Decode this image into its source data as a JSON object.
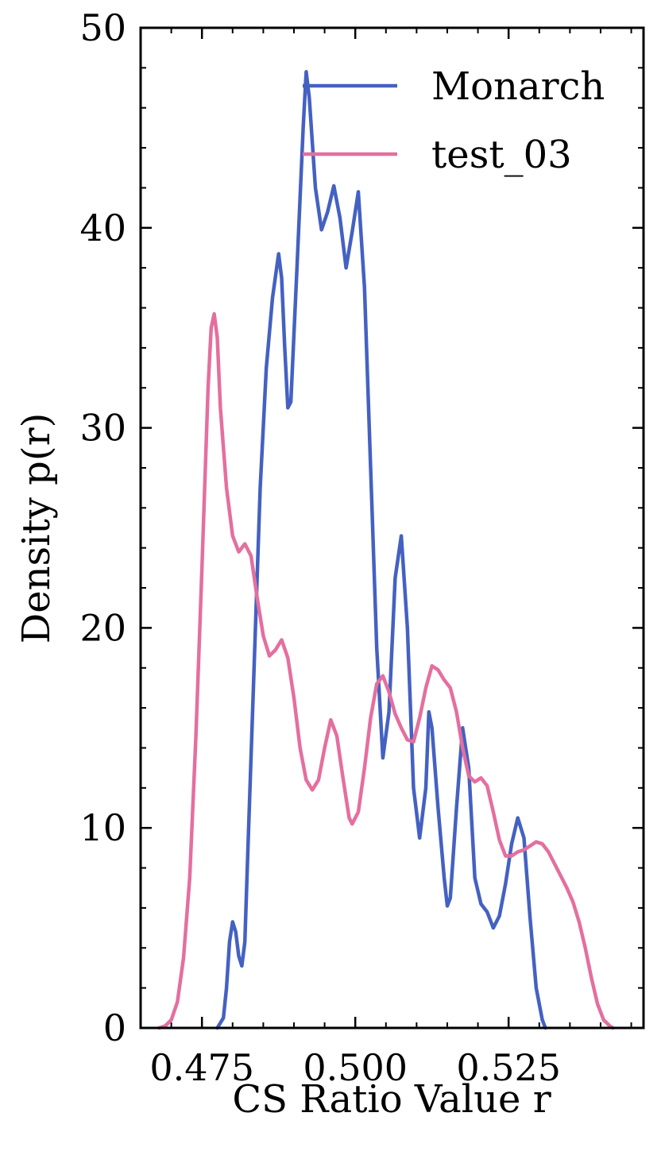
{
  "chart_data": {
    "type": "line",
    "xlabel": "CS Ratio Value r",
    "ylabel": "Density p(r)",
    "xlim": [
      0.465,
      0.547
    ],
    "ylim": [
      0,
      50
    ],
    "x_ticks": [
      0.475,
      0.5,
      0.525
    ],
    "x_tick_labels": [
      "0.475",
      "0.500",
      "0.525"
    ],
    "y_ticks": [
      0,
      10,
      20,
      30,
      40,
      50
    ],
    "y_tick_labels": [
      "0",
      "10",
      "20",
      "30",
      "40",
      "50"
    ],
    "legend_position": "top-right",
    "grid": false,
    "series": [
      {
        "name": "Monarch",
        "color": "#4461c2",
        "points": [
          [
            0.4775,
            0
          ],
          [
            0.4785,
            0.5
          ],
          [
            0.479,
            2
          ],
          [
            0.4795,
            4.3
          ],
          [
            0.48,
            5.3
          ],
          [
            0.4805,
            4.8
          ],
          [
            0.481,
            3.6
          ],
          [
            0.4815,
            3.1
          ],
          [
            0.482,
            4.3
          ],
          [
            0.4825,
            9
          ],
          [
            0.4835,
            18
          ],
          [
            0.4845,
            27
          ],
          [
            0.4855,
            33
          ],
          [
            0.4865,
            36.5
          ],
          [
            0.4875,
            38.7
          ],
          [
            0.488,
            37.5
          ],
          [
            0.4885,
            34
          ],
          [
            0.489,
            31
          ],
          [
            0.4895,
            31.3
          ],
          [
            0.4905,
            38
          ],
          [
            0.4915,
            45
          ],
          [
            0.492,
            47.8
          ],
          [
            0.4925,
            46.5
          ],
          [
            0.4935,
            42
          ],
          [
            0.4945,
            39.9
          ],
          [
            0.4955,
            40.8
          ],
          [
            0.4965,
            42.1
          ],
          [
            0.4975,
            40.5
          ],
          [
            0.4985,
            38
          ],
          [
            0.4995,
            39.8
          ],
          [
            0.5005,
            41.8
          ],
          [
            0.5015,
            37
          ],
          [
            0.5025,
            28
          ],
          [
            0.5035,
            19
          ],
          [
            0.5045,
            13.5
          ],
          [
            0.5055,
            15.8
          ],
          [
            0.5065,
            22.5
          ],
          [
            0.5075,
            24.6
          ],
          [
            0.5085,
            20
          ],
          [
            0.5095,
            12
          ],
          [
            0.5105,
            9.5
          ],
          [
            0.5115,
            12
          ],
          [
            0.512,
            15.8
          ],
          [
            0.5125,
            15
          ],
          [
            0.5135,
            11
          ],
          [
            0.5145,
            7.5
          ],
          [
            0.515,
            6.1
          ],
          [
            0.5155,
            6.5
          ],
          [
            0.5165,
            11
          ],
          [
            0.5175,
            15
          ],
          [
            0.5185,
            13
          ],
          [
            0.5195,
            7.5
          ],
          [
            0.5205,
            6.2
          ],
          [
            0.5215,
            5.8
          ],
          [
            0.5225,
            5.0
          ],
          [
            0.5235,
            5.6
          ],
          [
            0.5245,
            7.2
          ],
          [
            0.5255,
            9.2
          ],
          [
            0.5265,
            10.5
          ],
          [
            0.5275,
            9.5
          ],
          [
            0.5285,
            5.5
          ],
          [
            0.5295,
            2
          ],
          [
            0.5305,
            0.4
          ],
          [
            0.531,
            0
          ]
        ]
      },
      {
        "name": "test_03",
        "color": "#e46f9f",
        "points": [
          [
            0.468,
            0
          ],
          [
            0.469,
            0.1
          ],
          [
            0.47,
            0.4
          ],
          [
            0.471,
            1.3
          ],
          [
            0.472,
            3.5
          ],
          [
            0.473,
            7.5
          ],
          [
            0.474,
            14.5
          ],
          [
            0.475,
            23
          ],
          [
            0.476,
            32
          ],
          [
            0.4765,
            35
          ],
          [
            0.477,
            35.7
          ],
          [
            0.4775,
            34.5
          ],
          [
            0.478,
            31
          ],
          [
            0.479,
            27
          ],
          [
            0.48,
            24.6
          ],
          [
            0.481,
            23.8
          ],
          [
            0.482,
            24.2
          ],
          [
            0.483,
            23.6
          ],
          [
            0.484,
            21.5
          ],
          [
            0.485,
            19.6
          ],
          [
            0.486,
            18.6
          ],
          [
            0.487,
            18.9
          ],
          [
            0.488,
            19.4
          ],
          [
            0.489,
            18.5
          ],
          [
            0.49,
            16.5
          ],
          [
            0.491,
            14
          ],
          [
            0.492,
            12.4
          ],
          [
            0.493,
            11.9
          ],
          [
            0.494,
            12.4
          ],
          [
            0.495,
            14
          ],
          [
            0.496,
            15.4
          ],
          [
            0.497,
            14.6
          ],
          [
            0.498,
            12.5
          ],
          [
            0.499,
            10.5
          ],
          [
            0.4995,
            10.2
          ],
          [
            0.5005,
            10.8
          ],
          [
            0.5015,
            13
          ],
          [
            0.5025,
            15.5
          ],
          [
            0.5035,
            17.2
          ],
          [
            0.5045,
            17.6
          ],
          [
            0.5055,
            16.8
          ],
          [
            0.5065,
            15.7
          ],
          [
            0.5075,
            15
          ],
          [
            0.5085,
            14.4
          ],
          [
            0.5095,
            14.3
          ],
          [
            0.5105,
            15.5
          ],
          [
            0.5115,
            17
          ],
          [
            0.5125,
            18.1
          ],
          [
            0.5135,
            17.9
          ],
          [
            0.5145,
            17.4
          ],
          [
            0.5155,
            17
          ],
          [
            0.5165,
            15.8
          ],
          [
            0.5175,
            14
          ],
          [
            0.5185,
            12.6
          ],
          [
            0.5195,
            12.3
          ],
          [
            0.5205,
            12.5
          ],
          [
            0.5215,
            12.1
          ],
          [
            0.5225,
            10.8
          ],
          [
            0.5235,
            9.4
          ],
          [
            0.5245,
            8.6
          ],
          [
            0.5255,
            8.6
          ],
          [
            0.5265,
            8.8
          ],
          [
            0.5275,
            8.9
          ],
          [
            0.5285,
            9.1
          ],
          [
            0.5295,
            9.3
          ],
          [
            0.5305,
            9.2
          ],
          [
            0.5315,
            8.8
          ],
          [
            0.5325,
            8.2
          ],
          [
            0.5335,
            7.6
          ],
          [
            0.5345,
            7
          ],
          [
            0.5355,
            6.3
          ],
          [
            0.5365,
            5.3
          ],
          [
            0.5375,
            4
          ],
          [
            0.5385,
            2.5
          ],
          [
            0.5395,
            1.2
          ],
          [
            0.5405,
            0.4
          ],
          [
            0.5415,
            0.1
          ],
          [
            0.542,
            0
          ]
        ]
      }
    ]
  }
}
